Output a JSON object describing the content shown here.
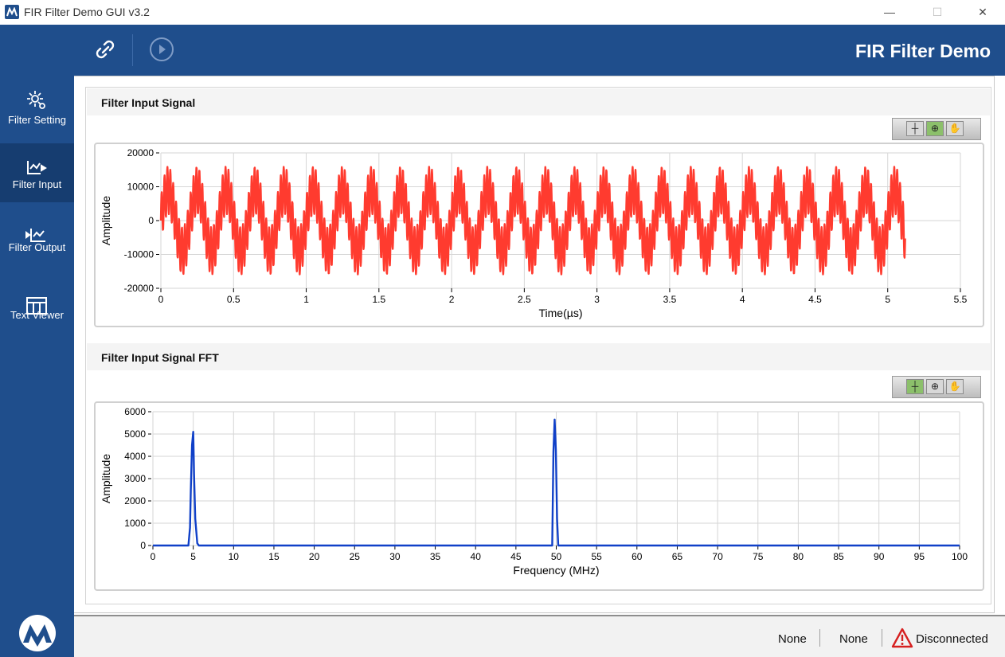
{
  "window": {
    "title": "FIR Filter Demo GUI v3.2",
    "minimize_label": "—",
    "maximize_label": "☐",
    "close_label": "✕"
  },
  "header": {
    "title": "FIR Filter Demo",
    "link_icon": "link-icon",
    "play_icon": "play-circle-icon"
  },
  "sidebar": {
    "items": [
      {
        "label": "Filter Setting",
        "icon": "gear-icon",
        "active": false
      },
      {
        "label": "Filter Input",
        "icon": "chart-input-icon",
        "active": true
      },
      {
        "label": "Filter Output",
        "icon": "chart-output-icon",
        "active": false
      },
      {
        "label": "Text Viewer",
        "icon": "table-icon",
        "active": false
      }
    ],
    "logo_icon": "microchip-logo"
  },
  "status": {
    "item1": "None",
    "item2": "None",
    "connection": "Disconnected",
    "warning_color": "#d62020"
  },
  "colors": {
    "accent": "#1f4e8c",
    "signal_trace": "#ff3b2f",
    "fft_trace": "#1040c8"
  },
  "chart_data": [
    {
      "type": "line",
      "title": "Filter Input Signal",
      "xlabel": "Time(µs)",
      "ylabel": "Amplitude",
      "xlim": [
        0,
        5.5
      ],
      "ylim": [
        -20000,
        20000
      ],
      "x_ticks": [
        "0",
        "0.5",
        "1",
        "1.5",
        "2",
        "2.5",
        "3",
        "3.5",
        "4",
        "4.5",
        "5",
        "5.5"
      ],
      "y_ticks": [
        "20000",
        "10000",
        "0",
        "-10000",
        "-20000"
      ],
      "grid": true,
      "series": [
        {
          "color": "#ff3b2f",
          "components": [
            {
              "amplitude": 9000,
              "frequency_mhz": 5
            },
            {
              "amplitude": 7000,
              "frequency_mhz": 50
            }
          ],
          "x_range": [
            0,
            5.12
          ]
        }
      ]
    },
    {
      "type": "line",
      "title": "Filter Input Signal FFT",
      "xlabel": "Frequency (MHz)",
      "ylabel": "Amplitude",
      "xlim": [
        0,
        100
      ],
      "ylim": [
        0,
        6000
      ],
      "x_ticks": [
        "0",
        "5",
        "10",
        "15",
        "20",
        "25",
        "30",
        "35",
        "40",
        "45",
        "50",
        "55",
        "60",
        "65",
        "70",
        "75",
        "80",
        "85",
        "90",
        "95",
        "100"
      ],
      "y_ticks": [
        "6000",
        "5000",
        "4000",
        "3000",
        "2000",
        "1000",
        "0"
      ],
      "grid": true,
      "series": [
        {
          "color": "#1040c8",
          "points": [
            [
              0,
              0
            ],
            [
              4.4,
              0
            ],
            [
              4.6,
              800
            ],
            [
              4.7,
              2500
            ],
            [
              4.85,
              4500
            ],
            [
              5.0,
              5100
            ],
            [
              5.1,
              3200
            ],
            [
              5.25,
              1200
            ],
            [
              5.5,
              100
            ],
            [
              5.7,
              0
            ],
            [
              49.5,
              0
            ],
            [
              49.65,
              4200
            ],
            [
              49.8,
              5650
            ],
            [
              49.95,
              4300
            ],
            [
              50.1,
              1200
            ],
            [
              50.25,
              0
            ],
            [
              100,
              0
            ]
          ]
        }
      ]
    }
  ]
}
